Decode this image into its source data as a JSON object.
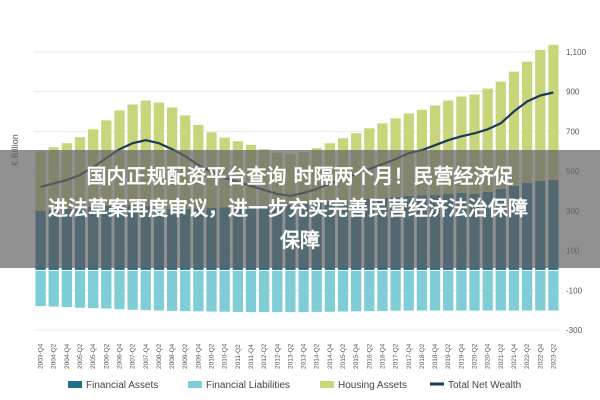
{
  "chart_data": {
    "type": "bar",
    "ylabel": "€ Billion",
    "ylim": [
      -300,
      1250
    ],
    "yticks": [
      1100,
      900,
      700,
      500,
      300,
      100,
      -100,
      -300
    ],
    "ytick_labels": [
      "1,100",
      "900",
      "700",
      "500",
      "300",
      "100",
      "-100",
      "-300"
    ],
    "categories": [
      "2003-Q4",
      "2004-Q2",
      "2004-Q4",
      "2005-Q2",
      "2005-Q4",
      "2006-Q2",
      "2006-Q4",
      "2007-Q2",
      "2007-Q4",
      "2008-Q2",
      "2008-Q4",
      "2009-Q2",
      "2009-Q4",
      "2010-Q2",
      "2010-Q4",
      "2011-Q2",
      "2011-Q4",
      "2012-Q2",
      "2012-Q4",
      "2013-Q2",
      "2013-Q4",
      "2014-Q2",
      "2014-Q4",
      "2015-Q2",
      "2015-Q4",
      "2016-Q2",
      "2016-Q4",
      "2017-Q2",
      "2017-Q4",
      "2018-Q2",
      "2018-Q4",
      "2019-Q2",
      "2019-Q4",
      "2020-Q2",
      "2020-Q4",
      "2021-Q2",
      "2021-Q4",
      "2022-Q2",
      "2022-Q4",
      "2023-Q2"
    ],
    "series": [
      {
        "name": "Financial Assets",
        "kind": "bar",
        "color": "#1f6f8b",
        "values": [
          300,
          305,
          310,
          315,
          320,
          325,
          330,
          330,
          325,
          315,
          310,
          310,
          312,
          315,
          318,
          320,
          322,
          325,
          328,
          330,
          335,
          340,
          345,
          350,
          355,
          360,
          365,
          370,
          375,
          378,
          380,
          385,
          390,
          385,
          395,
          410,
          425,
          440,
          450,
          455
        ]
      },
      {
        "name": "Financial Liabilities",
        "kind": "bar",
        "color": "#7fcdd6",
        "values": [
          -180,
          -182,
          -185,
          -188,
          -190,
          -192,
          -195,
          -198,
          -200,
          -202,
          -204,
          -205,
          -206,
          -207,
          -208,
          -209,
          -210,
          -210,
          -210,
          -210,
          -210,
          -209,
          -208,
          -207,
          -206,
          -205,
          -204,
          -203,
          -202,
          -202,
          -202,
          -202,
          -202,
          -202,
          -202,
          -202,
          -202,
          -202,
          -202,
          -202
        ]
      },
      {
        "name": "Housing Assets",
        "kind": "bar",
        "color": "#c8d57a",
        "values": [
          300,
          315,
          330,
          355,
          390,
          430,
          475,
          505,
          530,
          530,
          510,
          470,
          420,
          380,
          350,
          330,
          310,
          285,
          265,
          255,
          260,
          275,
          295,
          315,
          335,
          355,
          375,
          395,
          415,
          430,
          450,
          470,
          485,
          500,
          520,
          540,
          575,
          610,
          660,
          680
        ]
      },
      {
        "name": "Total Net Wealth",
        "kind": "line",
        "color": "#1b3a5c",
        "values": [
          420,
          438,
          455,
          480,
          520,
          565,
          610,
          640,
          655,
          640,
          610,
          575,
          530,
          495,
          465,
          445,
          425,
          405,
          385,
          375,
          390,
          410,
          435,
          460,
          485,
          510,
          535,
          560,
          590,
          605,
          630,
          655,
          675,
          690,
          710,
          740,
          800,
          850,
          880,
          895
        ]
      }
    ],
    "legend": {
      "position": "bottom"
    }
  },
  "overlay": {
    "line1": "国内正规配资平台查询 时隔两个月！民营经济促",
    "line2": "进法草案再度审议，进一步充实完善民营经济法治保障",
    "line3": "保障"
  }
}
